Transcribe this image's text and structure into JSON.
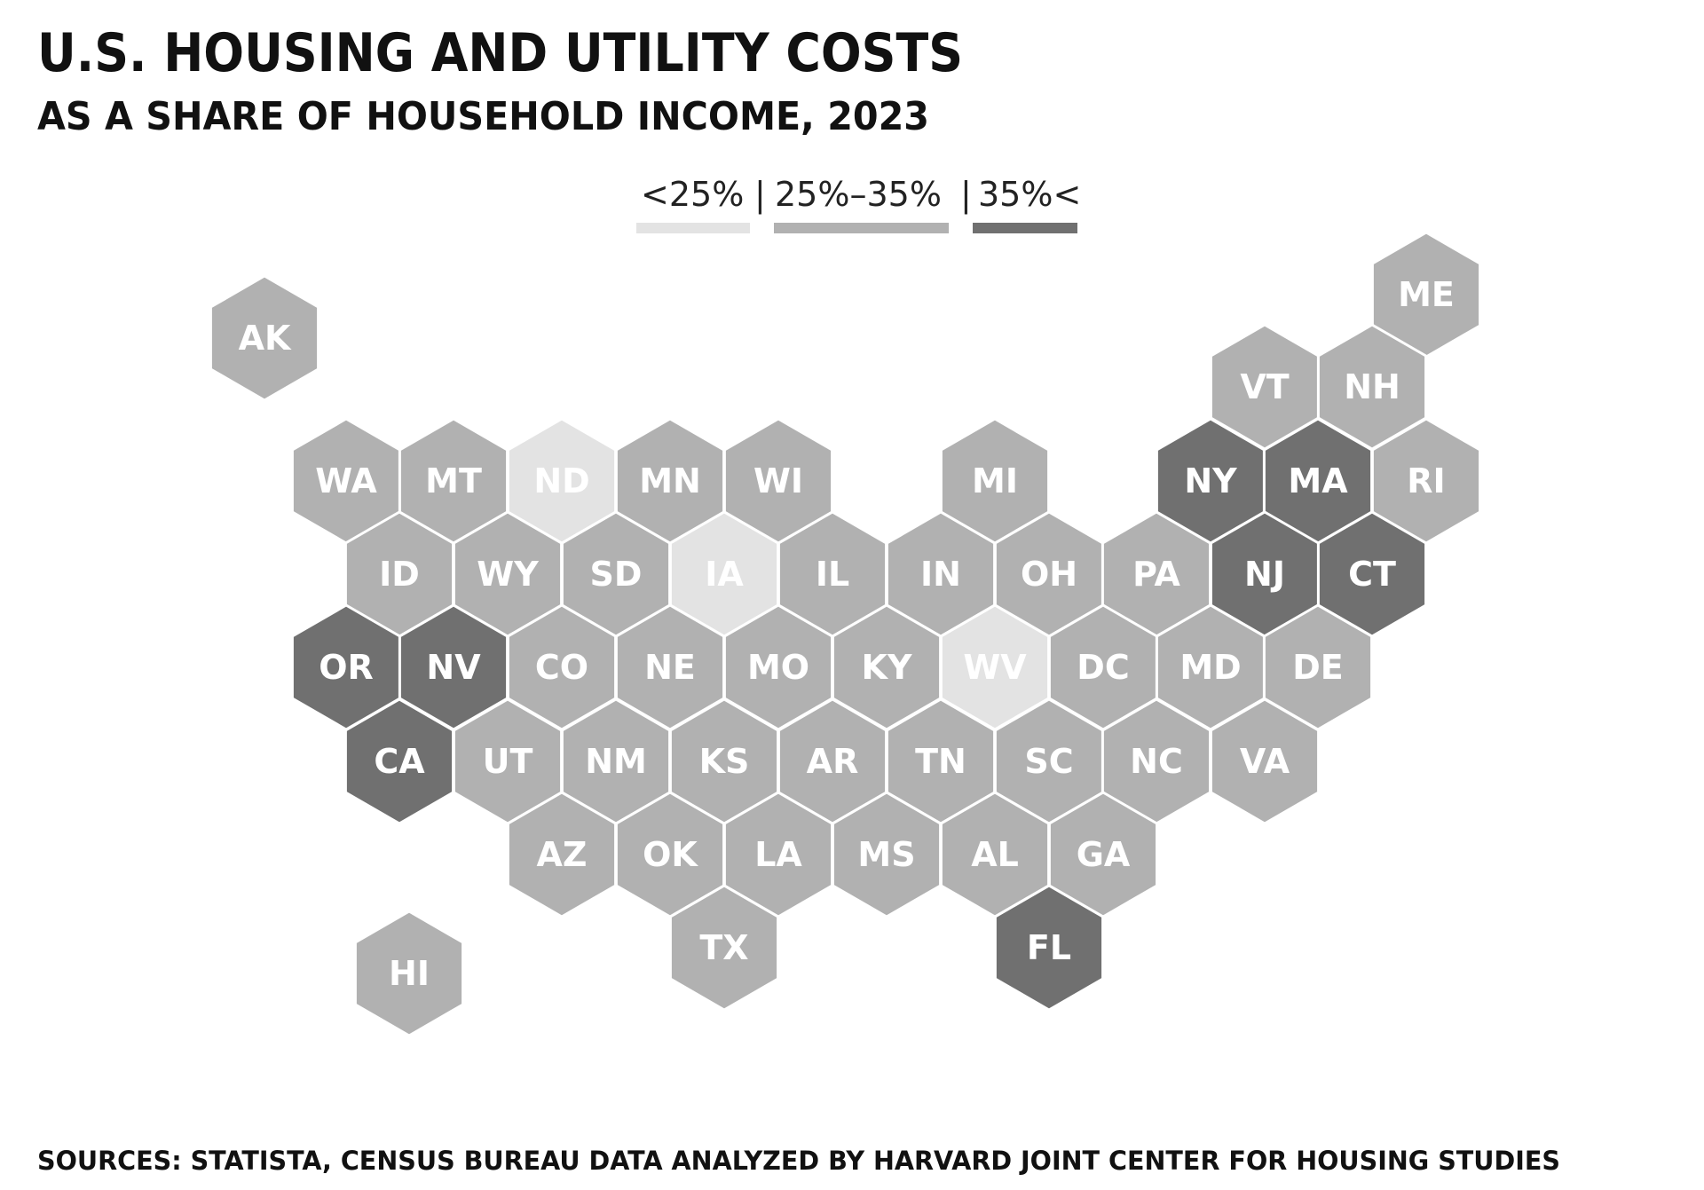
{
  "title": "U.S. HOUSING AND UTILITY COSTS",
  "subtitle": "AS A SHARE OF HOUSEHOLD INCOME, 2023",
  "source": "SOURCES: STATISTA, CENSUS BUREAU DATA ANALYZED BY HARVARD JOINT CENTER FOR HOUSING STUDIES",
  "legend": {
    "items": [
      {
        "label": "<25%",
        "level": "low",
        "color": "#e3e3e3"
      },
      {
        "label": "25%–35%",
        "level": "mid",
        "color": "#b1b1b1"
      },
      {
        "label": "35%<",
        "level": "high",
        "color": "#707070"
      }
    ],
    "separator": "|"
  },
  "chart_data": {
    "type": "hex tile map",
    "categories": [
      "<25%",
      "25%–35%",
      "35%<"
    ],
    "states": [
      {
        "abbr": "AK",
        "level": "mid"
      },
      {
        "abbr": "HI",
        "level": "mid"
      },
      {
        "abbr": "ME",
        "level": "mid"
      },
      {
        "abbr": "VT",
        "level": "mid"
      },
      {
        "abbr": "NH",
        "level": "mid"
      },
      {
        "abbr": "WA",
        "level": "mid"
      },
      {
        "abbr": "MT",
        "level": "mid"
      },
      {
        "abbr": "ND",
        "level": "low"
      },
      {
        "abbr": "MN",
        "level": "mid"
      },
      {
        "abbr": "WI",
        "level": "mid"
      },
      {
        "abbr": "MI",
        "level": "mid"
      },
      {
        "abbr": "NY",
        "level": "high"
      },
      {
        "abbr": "MA",
        "level": "high"
      },
      {
        "abbr": "RI",
        "level": "mid"
      },
      {
        "abbr": "ID",
        "level": "mid"
      },
      {
        "abbr": "WY",
        "level": "mid"
      },
      {
        "abbr": "SD",
        "level": "mid"
      },
      {
        "abbr": "IA",
        "level": "low"
      },
      {
        "abbr": "IL",
        "level": "mid"
      },
      {
        "abbr": "IN",
        "level": "mid"
      },
      {
        "abbr": "OH",
        "level": "mid"
      },
      {
        "abbr": "PA",
        "level": "mid"
      },
      {
        "abbr": "NJ",
        "level": "high"
      },
      {
        "abbr": "CT",
        "level": "high"
      },
      {
        "abbr": "OR",
        "level": "high"
      },
      {
        "abbr": "NV",
        "level": "high"
      },
      {
        "abbr": "CO",
        "level": "mid"
      },
      {
        "abbr": "NE",
        "level": "mid"
      },
      {
        "abbr": "MO",
        "level": "mid"
      },
      {
        "abbr": "KY",
        "level": "mid"
      },
      {
        "abbr": "WV",
        "level": "low"
      },
      {
        "abbr": "DC",
        "level": "mid"
      },
      {
        "abbr": "MD",
        "level": "mid"
      },
      {
        "abbr": "DE",
        "level": "mid"
      },
      {
        "abbr": "CA",
        "level": "high"
      },
      {
        "abbr": "UT",
        "level": "mid"
      },
      {
        "abbr": "NM",
        "level": "mid"
      },
      {
        "abbr": "KS",
        "level": "mid"
      },
      {
        "abbr": "AR",
        "level": "mid"
      },
      {
        "abbr": "TN",
        "level": "mid"
      },
      {
        "abbr": "SC",
        "level": "mid"
      },
      {
        "abbr": "NC",
        "level": "mid"
      },
      {
        "abbr": "VA",
        "level": "mid"
      },
      {
        "abbr": "AZ",
        "level": "mid"
      },
      {
        "abbr": "OK",
        "level": "mid"
      },
      {
        "abbr": "LA",
        "level": "mid"
      },
      {
        "abbr": "MS",
        "level": "mid"
      },
      {
        "abbr": "AL",
        "level": "mid"
      },
      {
        "abbr": "GA",
        "level": "mid"
      },
      {
        "abbr": "TX",
        "level": "mid"
      },
      {
        "abbr": "FL",
        "level": "high"
      }
    ]
  }
}
